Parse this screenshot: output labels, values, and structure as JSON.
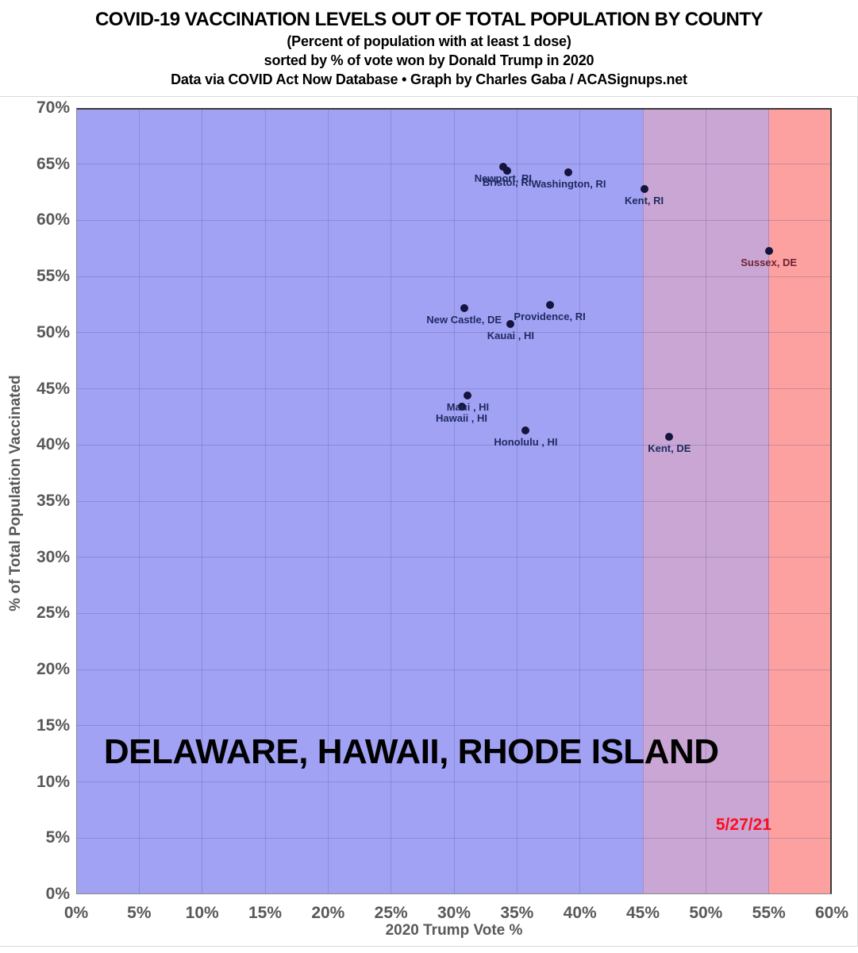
{
  "chart_data": {
    "type": "scatter",
    "title": "COVID-19 VACCINATION LEVELS OUT OF TOTAL POPULATION BY COUNTY",
    "subtitle": "(Percent of population with at least 1 dose)",
    "sort_note": "sorted by % of vote won by Donald Trump in 2020",
    "credit": "Data via COVID Act Now Database • Graph by Charles Gaba / ACASignups.net",
    "xlabel": "2020 Trump Vote %",
    "ylabel": "% of Total Population Vaccinated",
    "xlim": [
      0,
      60
    ],
    "ylim": [
      0,
      70
    ],
    "grid": true,
    "x_ticks": [
      {
        "value": 0,
        "label": "0%"
      },
      {
        "value": 5,
        "label": "5%"
      },
      {
        "value": 10,
        "label": "10%"
      },
      {
        "value": 15,
        "label": "15%"
      },
      {
        "value": 20,
        "label": "20%"
      },
      {
        "value": 25,
        "label": "25%"
      },
      {
        "value": 30,
        "label": "30%"
      },
      {
        "value": 35,
        "label": "35%"
      },
      {
        "value": 40,
        "label": "40%"
      },
      {
        "value": 45,
        "label": "45%"
      },
      {
        "value": 50,
        "label": "50%"
      },
      {
        "value": 55,
        "label": "55%"
      },
      {
        "value": 60,
        "label": "60%"
      }
    ],
    "y_ticks": [
      {
        "value": 0,
        "label": "0%"
      },
      {
        "value": 5,
        "label": "5%"
      },
      {
        "value": 10,
        "label": "10%"
      },
      {
        "value": 15,
        "label": "15%"
      },
      {
        "value": 20,
        "label": "20%"
      },
      {
        "value": 25,
        "label": "25%"
      },
      {
        "value": 30,
        "label": "30%"
      },
      {
        "value": 35,
        "label": "35%"
      },
      {
        "value": 40,
        "label": "40%"
      },
      {
        "value": 45,
        "label": "45%"
      },
      {
        "value": 50,
        "label": "50%"
      },
      {
        "value": 55,
        "label": "55%"
      },
      {
        "value": 60,
        "label": "60%"
      },
      {
        "value": 65,
        "label": "65%"
      },
      {
        "value": 70,
        "label": "70%"
      }
    ],
    "zones": [
      {
        "name": "blue-lean",
        "x_from": 0,
        "x_to": 45,
        "color": "#A2A2F5"
      },
      {
        "name": "swing-purple",
        "x_from": 45,
        "x_to": 55,
        "color": "#C9A6D4"
      },
      {
        "name": "red-lean",
        "x_from": 55,
        "x_to": 60,
        "color": "#FCA0A0"
      }
    ],
    "points": [
      {
        "county": "Newport, RI",
        "trump_vote_pct": 33.9,
        "vaccinated_pct": 64.8,
        "label_color": "#1D2A5E"
      },
      {
        "county": "Bristol, RI",
        "trump_vote_pct": 34.2,
        "vaccinated_pct": 64.4,
        "label_color": "#1D2A5E"
      },
      {
        "county": "Washington, RI",
        "trump_vote_pct": 39.1,
        "vaccinated_pct": 64.3,
        "label_color": "#1D2A5E"
      },
      {
        "county": "Kent, RI",
        "trump_vote_pct": 45.1,
        "vaccinated_pct": 62.8,
        "label_color": "#1D2A5E"
      },
      {
        "county": "Sussex, DE",
        "trump_vote_pct": 55.0,
        "vaccinated_pct": 57.3,
        "label_color": "#6E2233"
      },
      {
        "county": "Providence, RI",
        "trump_vote_pct": 37.6,
        "vaccinated_pct": 52.5,
        "label_color": "#1D2A5E"
      },
      {
        "county": "New Castle, DE",
        "trump_vote_pct": 30.8,
        "vaccinated_pct": 52.2,
        "label_color": "#1D2A5E"
      },
      {
        "county": "Kauai , HI",
        "trump_vote_pct": 34.5,
        "vaccinated_pct": 50.8,
        "label_color": "#1D2A5E"
      },
      {
        "county": "Maui , HI",
        "trump_vote_pct": 31.1,
        "vaccinated_pct": 44.4,
        "label_color": "#1D2A5E"
      },
      {
        "county": "Hawaii , HI",
        "trump_vote_pct": 30.6,
        "vaccinated_pct": 43.4,
        "label_color": "#1D2A5E"
      },
      {
        "county": "Honolulu , HI",
        "trump_vote_pct": 35.7,
        "vaccinated_pct": 41.3,
        "label_color": "#1D2A5E"
      },
      {
        "county": "Kent, DE",
        "trump_vote_pct": 47.1,
        "vaccinated_pct": 40.7,
        "label_color": "#1D2A5E"
      }
    ],
    "annotations": {
      "states": {
        "text": "DELAWARE, HAWAII, RHODE ISLAND",
        "x": 2.2,
        "y": 12.6,
        "color": "#000000"
      },
      "date": {
        "text": "5/27/21",
        "x": 53.0,
        "y": 6.1,
        "color": "#FF0D1E"
      }
    },
    "colors": {
      "point": "#14143F",
      "axis_text": "#595959",
      "gridline": "rgba(70,70,130,0.25)",
      "title_text": "#000000"
    },
    "legend": null
  }
}
